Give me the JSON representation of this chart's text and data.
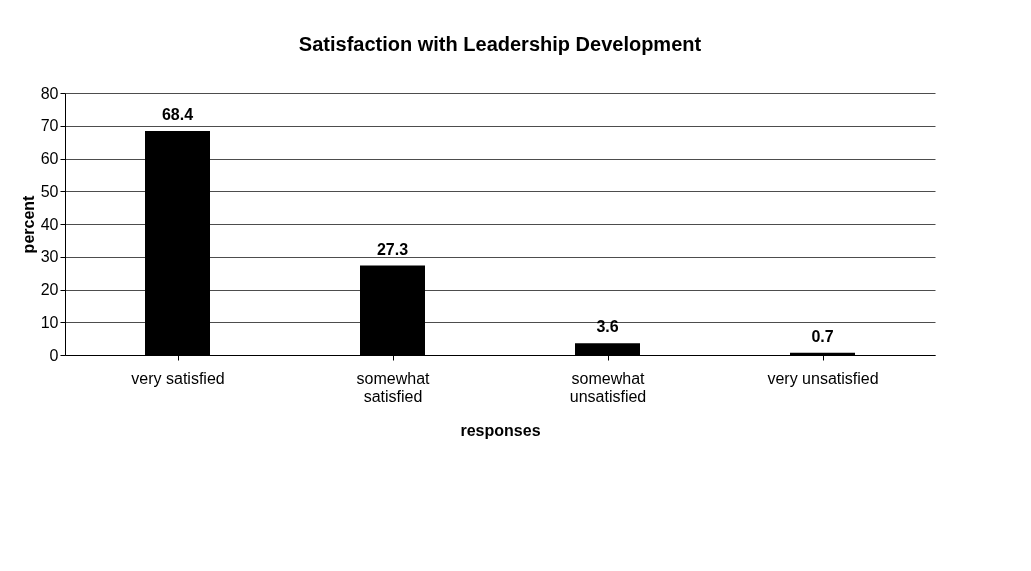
{
  "chart_data": {
    "type": "bar",
    "title": "Satisfaction with Leadership Development",
    "xlabel": "responses",
    "ylabel": "percent",
    "categories": [
      "very satisfied",
      "somewhat\nsatisfied",
      "somewhat\nunsatisfied",
      "very unsatisfied"
    ],
    "values": [
      68.4,
      27.3,
      3.6,
      0.7
    ],
    "color": "#000000",
    "ylim": [
      0,
      80
    ],
    "yticks": [
      0,
      10,
      20,
      30,
      40,
      50,
      60,
      70,
      80
    ],
    "grid": "y",
    "data_labels": true
  }
}
